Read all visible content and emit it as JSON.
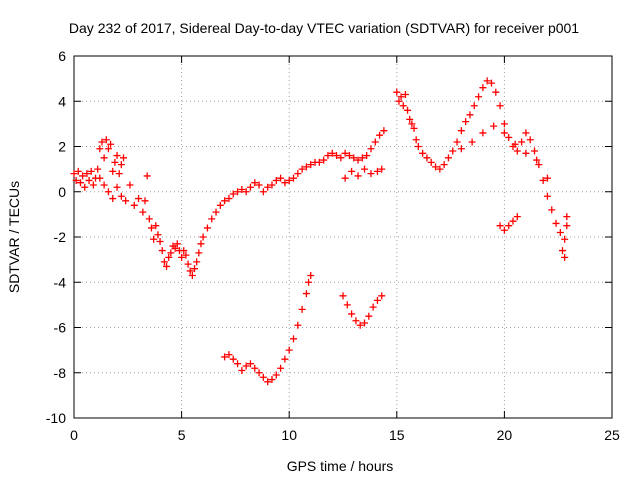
{
  "chart_data": {
    "type": "scatter",
    "title": "Day 232 of 2017, Sidereal Day-to-day VTEC variation (SDTVAR) for receiver p001",
    "xlabel": "GPS time / hours",
    "ylabel": "SDTVAR / TECUs",
    "xlim": [
      0,
      25
    ],
    "ylim": [
      -10,
      6
    ],
    "xticks": [
      0,
      5,
      10,
      15,
      20,
      25
    ],
    "yticks": [
      -10,
      -8,
      -6,
      -4,
      -2,
      0,
      2,
      4,
      6
    ],
    "xtick_labels": [
      "0",
      "5",
      "10",
      "15",
      "20",
      "25"
    ],
    "ytick_labels": [
      "-10",
      "-8",
      "-6",
      "-4",
      "-2",
      "0",
      "2",
      "4",
      "6"
    ],
    "grid": true,
    "marker": "plus",
    "color": "#ff0000",
    "series": [
      {
        "points": [
          [
            0.0,
            0.8
          ],
          [
            0.1,
            0.5
          ],
          [
            0.2,
            0.9
          ],
          [
            0.3,
            0.4
          ],
          [
            0.4,
            0.7
          ],
          [
            0.5,
            0.2
          ],
          [
            0.6,
            0.8
          ],
          [
            0.7,
            0.5
          ],
          [
            0.8,
            0.9
          ],
          [
            0.9,
            0.3
          ],
          [
            1.0,
            0.6
          ],
          [
            1.1,
            1.0
          ],
          [
            1.2,
            1.9
          ],
          [
            1.3,
            2.2
          ],
          [
            1.4,
            1.5
          ],
          [
            1.5,
            2.3
          ],
          [
            1.6,
            1.9
          ],
          [
            1.7,
            2.1
          ],
          [
            1.8,
            0.9
          ],
          [
            1.9,
            1.3
          ],
          [
            2.0,
            1.6
          ],
          [
            2.1,
            0.8
          ],
          [
            2.2,
            1.2
          ],
          [
            2.3,
            1.5
          ],
          [
            1.2,
            0.6
          ],
          [
            1.4,
            0.3
          ],
          [
            1.6,
            0.0
          ],
          [
            1.8,
            -0.3
          ],
          [
            2.0,
            0.2
          ],
          [
            2.2,
            -0.2
          ],
          [
            2.4,
            -0.4
          ],
          [
            2.6,
            0.3
          ],
          [
            2.8,
            -0.6
          ],
          [
            3.0,
            -0.3
          ],
          [
            3.2,
            -0.9
          ],
          [
            3.3,
            -0.4
          ],
          [
            3.4,
            0.7
          ],
          [
            3.5,
            -1.2
          ],
          [
            3.6,
            -1.6
          ],
          [
            3.7,
            -2.1
          ],
          [
            3.8,
            -1.5
          ],
          [
            3.9,
            -1.9
          ],
          [
            4.0,
            -2.2
          ],
          [
            4.1,
            -2.6
          ],
          [
            4.2,
            -3.1
          ],
          [
            4.3,
            -3.3
          ],
          [
            4.4,
            -2.9
          ],
          [
            4.5,
            -2.7
          ],
          [
            4.6,
            -2.4
          ],
          [
            4.7,
            -2.5
          ],
          [
            4.8,
            -2.3
          ],
          [
            4.9,
            -2.6
          ],
          [
            5.0,
            -2.9
          ],
          [
            5.1,
            -2.6
          ],
          [
            5.2,
            -2.8
          ],
          [
            5.3,
            -3.2
          ],
          [
            5.4,
            -3.5
          ],
          [
            5.5,
            -3.7
          ],
          [
            5.6,
            -3.4
          ],
          [
            5.7,
            -3.1
          ],
          [
            5.8,
            -2.7
          ],
          [
            5.9,
            -2.3
          ],
          [
            6.0,
            -2.0
          ],
          [
            6.2,
            -1.6
          ],
          [
            6.4,
            -1.2
          ],
          [
            6.6,
            -0.9
          ],
          [
            6.8,
            -0.6
          ],
          [
            7.0,
            -0.4
          ],
          [
            7.2,
            -0.3
          ],
          [
            7.4,
            -0.1
          ],
          [
            7.6,
            0.0
          ],
          [
            7.8,
            0.1
          ],
          [
            8.0,
            0.0
          ],
          [
            8.2,
            0.2
          ],
          [
            8.4,
            0.4
          ],
          [
            8.6,
            0.3
          ],
          [
            8.8,
            0.0
          ],
          [
            9.0,
            0.2
          ],
          [
            9.2,
            0.3
          ],
          [
            9.4,
            0.5
          ],
          [
            9.6,
            0.6
          ],
          [
            9.8,
            0.4
          ],
          [
            10.0,
            0.5
          ],
          [
            10.2,
            0.6
          ],
          [
            10.4,
            0.8
          ],
          [
            10.6,
            1.0
          ],
          [
            10.8,
            1.1
          ],
          [
            11.0,
            1.2
          ],
          [
            11.2,
            1.3
          ],
          [
            11.4,
            1.3
          ],
          [
            11.6,
            1.4
          ],
          [
            11.8,
            1.6
          ],
          [
            12.0,
            1.7
          ],
          [
            12.2,
            1.6
          ],
          [
            12.4,
            1.5
          ],
          [
            12.6,
            1.7
          ],
          [
            12.8,
            1.6
          ],
          [
            13.0,
            1.5
          ],
          [
            13.2,
            1.4
          ],
          [
            13.4,
            1.5
          ],
          [
            13.6,
            1.6
          ],
          [
            13.8,
            1.9
          ],
          [
            14.0,
            2.2
          ],
          [
            14.2,
            2.5
          ],
          [
            14.4,
            2.7
          ],
          [
            12.6,
            0.6
          ],
          [
            12.9,
            0.9
          ],
          [
            13.2,
            0.7
          ],
          [
            13.5,
            1.0
          ],
          [
            13.8,
            0.8
          ],
          [
            14.1,
            0.9
          ],
          [
            14.3,
            1.0
          ],
          [
            15.0,
            4.4
          ],
          [
            15.1,
            4.0
          ],
          [
            15.2,
            4.2
          ],
          [
            15.3,
            3.8
          ],
          [
            15.4,
            4.3
          ],
          [
            15.5,
            3.6
          ],
          [
            15.6,
            3.2
          ],
          [
            15.7,
            3.0
          ],
          [
            15.8,
            2.8
          ],
          [
            15.9,
            2.3
          ],
          [
            16.0,
            2.0
          ],
          [
            16.2,
            1.7
          ],
          [
            16.4,
            1.5
          ],
          [
            16.6,
            1.3
          ],
          [
            16.8,
            1.1
          ],
          [
            17.0,
            1.0
          ],
          [
            17.2,
            1.2
          ],
          [
            17.4,
            1.5
          ],
          [
            17.6,
            1.8
          ],
          [
            17.8,
            2.2
          ],
          [
            18.0,
            2.7
          ],
          [
            18.2,
            3.1
          ],
          [
            18.4,
            3.4
          ],
          [
            18.6,
            3.8
          ],
          [
            18.8,
            4.2
          ],
          [
            19.0,
            4.6
          ],
          [
            19.2,
            4.9
          ],
          [
            19.4,
            4.8
          ],
          [
            19.6,
            4.4
          ],
          [
            19.8,
            3.8
          ],
          [
            20.0,
            3.0
          ],
          [
            20.2,
            2.4
          ],
          [
            20.4,
            2.0
          ],
          [
            20.6,
            1.8
          ],
          [
            20.8,
            2.2
          ],
          [
            21.0,
            2.6
          ],
          [
            21.2,
            2.3
          ],
          [
            21.4,
            1.8
          ],
          [
            21.6,
            1.2
          ],
          [
            21.8,
            0.5
          ],
          [
            22.0,
            -0.2
          ],
          [
            22.2,
            -0.8
          ],
          [
            22.4,
            -1.4
          ],
          [
            22.6,
            -1.8
          ],
          [
            22.8,
            -2.1
          ],
          [
            22.9,
            -1.5
          ],
          [
            22.7,
            -2.6
          ],
          [
            22.8,
            -2.9
          ],
          [
            22.9,
            -1.1
          ],
          [
            18.0,
            1.9
          ],
          [
            18.5,
            2.2
          ],
          [
            19.0,
            2.6
          ],
          [
            19.5,
            2.9
          ],
          [
            20.0,
            2.6
          ],
          [
            20.5,
            2.1
          ],
          [
            21.0,
            1.7
          ],
          [
            21.5,
            1.4
          ],
          [
            22.0,
            0.6
          ],
          [
            19.8,
            -1.5
          ],
          [
            20.0,
            -1.7
          ],
          [
            20.2,
            -1.5
          ],
          [
            20.4,
            -1.3
          ],
          [
            20.6,
            -1.1
          ],
          [
            7.0,
            -7.3
          ],
          [
            7.2,
            -7.2
          ],
          [
            7.4,
            -7.4
          ],
          [
            7.6,
            -7.6
          ],
          [
            7.8,
            -7.9
          ],
          [
            8.0,
            -7.7
          ],
          [
            8.2,
            -7.6
          ],
          [
            8.4,
            -7.8
          ],
          [
            8.6,
            -8.0
          ],
          [
            8.8,
            -8.2
          ],
          [
            9.0,
            -8.4
          ],
          [
            9.2,
            -8.3
          ],
          [
            9.4,
            -8.1
          ],
          [
            9.6,
            -7.8
          ],
          [
            9.8,
            -7.4
          ],
          [
            10.0,
            -7.0
          ],
          [
            10.2,
            -6.5
          ],
          [
            10.4,
            -5.9
          ],
          [
            10.6,
            -5.2
          ],
          [
            10.8,
            -4.5
          ],
          [
            10.9,
            -4.0
          ],
          [
            11.0,
            -3.7
          ],
          [
            12.5,
            -4.6
          ],
          [
            12.7,
            -5.0
          ],
          [
            12.9,
            -5.4
          ],
          [
            13.1,
            -5.7
          ],
          [
            13.3,
            -5.9
          ],
          [
            13.5,
            -5.8
          ],
          [
            13.7,
            -5.5
          ],
          [
            13.9,
            -5.1
          ],
          [
            14.1,
            -4.8
          ],
          [
            14.3,
            -4.6
          ]
        ]
      }
    ]
  }
}
